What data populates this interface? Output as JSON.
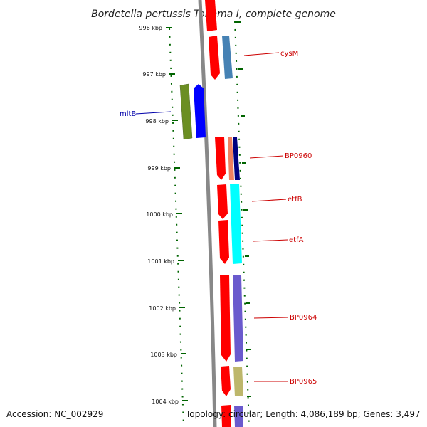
{
  "title": "Bordetella pertussis Tohama I, complete genome",
  "footer": {
    "accession": "Accession: NC_002929",
    "summary": "Topology: circular; Length: 4,086,189 bp; Genes: 3,497"
  },
  "ticks": [
    "996 kbp",
    "997 kbp",
    "998 kbp",
    "999 kbp",
    "1000 kbp",
    "1001 kbp",
    "1002 kbp",
    "1003 kbp",
    "1004 kbp"
  ],
  "labels": {
    "cysM": "cysM",
    "mltB": "mltB",
    "BP0960": "BP0960",
    "etfB": "etfB",
    "etfA": "etfA",
    "BP0964": "BP0964",
    "BP0965": "BP0965"
  },
  "colors": {
    "cds": "#ff0000",
    "cysM": "#4682b4",
    "mltB_outer": "#6b8e23",
    "mltB_inner": "#0000ff",
    "BP0960_a": "#f08060",
    "BP0960_b": "#000080",
    "etf": "#00ffff",
    "BP0964": "#6a5acd",
    "BP0965": "#bdb76b",
    "backbone": "#888888",
    "ticks": "#006400",
    "label_red": "#cc0000",
    "label_blue": "#0000aa"
  }
}
